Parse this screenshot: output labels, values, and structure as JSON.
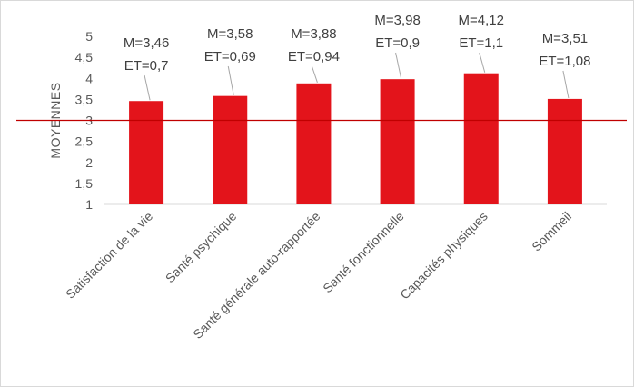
{
  "chart_data": {
    "type": "bar",
    "title": "",
    "xlabel": "",
    "ylabel": "MOYENNES",
    "ylim": [
      1,
      5
    ],
    "yticks": [
      "1",
      "1,5",
      "2",
      "2,5",
      "3",
      "3,5",
      "4",
      "4,5",
      "5"
    ],
    "categories": [
      "Satisfaction de la vie",
      "Santé psychique",
      "Santé générale auto-rapportée",
      "Santé fonctionnelle",
      "Capacités physiques",
      "Sommeil"
    ],
    "values": [
      3.46,
      3.58,
      3.88,
      3.98,
      4.12,
      3.51
    ],
    "labels": [
      {
        "m": "M=3,46",
        "et": "ET=0,7"
      },
      {
        "m": "M=3,58",
        "et": "ET=0,69"
      },
      {
        "m": "M=3,88",
        "et": "ET=0,94"
      },
      {
        "m": "M=3,98",
        "et": "ET=0,9"
      },
      {
        "m": "M=4,12",
        "et": "ET=1,1"
      },
      {
        "m": "M=3,51",
        "et": "ET=1,08"
      }
    ],
    "reference_line": 3,
    "bar_color": "#e3141b",
    "reference_line_color": "#c00000",
    "grid": false,
    "legend": "none"
  }
}
